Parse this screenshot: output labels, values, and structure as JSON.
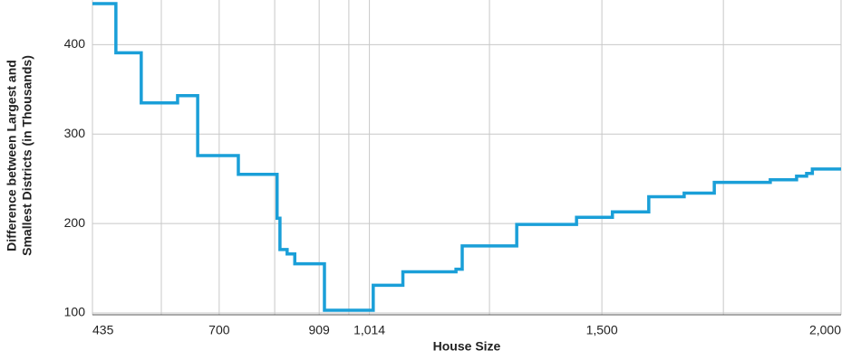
{
  "chart_data": {
    "type": "step",
    "xlabel": "House Size",
    "ylabel": [
      "Difference between Largest and",
      "Smallest Districts (in Thousands)"
    ],
    "x": [
      435,
      484,
      537,
      613,
      655,
      740,
      821,
      827,
      842,
      858,
      920,
      1022,
      1084,
      1195,
      1208,
      1322,
      1447,
      1522,
      1598,
      1672,
      1735,
      1852,
      1907,
      1928,
      1940,
      2000
    ],
    "series": [
      {
        "color": "#1a9fd8",
        "values": [
          446,
          391,
          335,
          343,
          276,
          255,
          206,
          171,
          166,
          155,
          103,
          131,
          146,
          149,
          175,
          199,
          207,
          213,
          230,
          234,
          246,
          249,
          253,
          256,
          261,
          261
        ]
      }
    ],
    "xlim": [
      435,
      2000
    ],
    "ylim": [
      98,
      450
    ],
    "xticks": [
      435,
      700,
      909,
      {
        "value": 1014,
        "label": "1,014"
      },
      {
        "value": 1500,
        "label": "1,500"
      },
      {
        "value": 2000,
        "label": "2,000"
      }
    ],
    "x_gridlines": [
      579,
      816,
      971,
      1265,
      1754
    ],
    "yticks": [
      100,
      200,
      300,
      400
    ],
    "grid": true
  }
}
